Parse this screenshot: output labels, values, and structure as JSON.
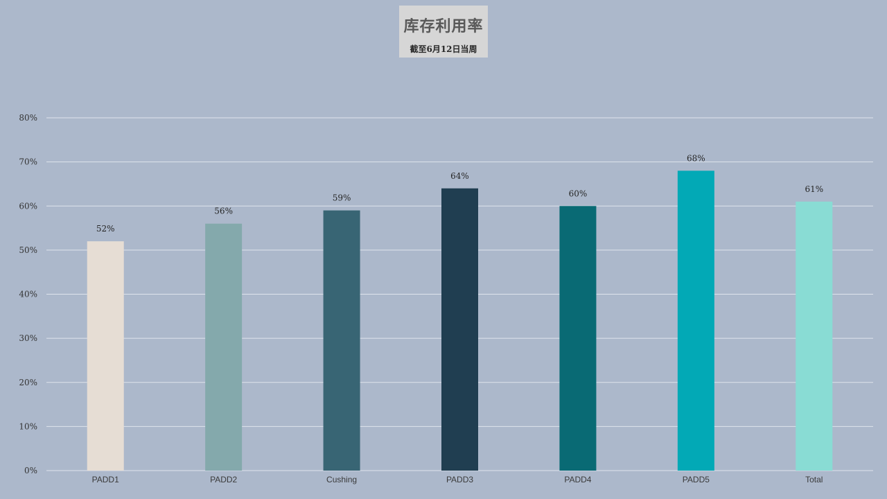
{
  "chart_data": {
    "type": "bar",
    "title": "库存利用率",
    "subtitle": "截至6月12日当周",
    "categories": [
      "PADD1",
      "PADD2",
      "Cushing",
      "PADD3",
      "PADD4",
      "PADD5",
      "Total"
    ],
    "values": [
      52,
      56,
      59,
      64,
      60,
      68,
      61
    ],
    "data_labels": [
      "52%",
      "56%",
      "59%",
      "64%",
      "60%",
      "68%",
      "61%"
    ],
    "bar_colors": [
      "#e6ddd4",
      "#84a9ac",
      "#386574",
      "#203e51",
      "#096a74",
      "#02a9b6",
      "#89dcd4"
    ],
    "ylim": [
      0,
      80
    ],
    "yticks": [
      0,
      10,
      20,
      30,
      40,
      50,
      60,
      70,
      80
    ],
    "ytick_labels": [
      "0%",
      "10%",
      "20%",
      "30%",
      "40%",
      "50%",
      "60%",
      "70%",
      "80%"
    ],
    "grid": true,
    "legend": "none",
    "xlabel": "",
    "ylabel": "",
    "background_color": "#acb8cb",
    "gridline_color": "#dfe4ec"
  }
}
